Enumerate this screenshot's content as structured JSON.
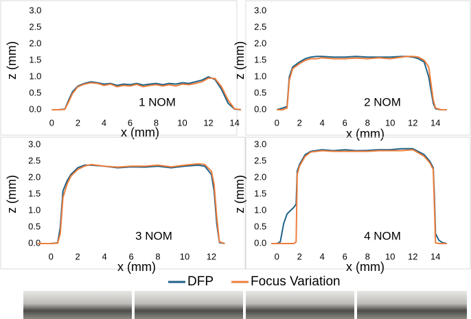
{
  "chart_data": [
    {
      "type": "line",
      "annotation": "1 NOM",
      "xlabel": "x (mm)",
      "ylabel": "z (mm)",
      "xlim": [
        -1.6,
        14.6
      ],
      "ylim": [
        0,
        3.0
      ],
      "xticks": [
        0,
        2,
        4,
        6,
        8,
        10,
        12,
        14
      ],
      "yticks": [
        {
          "value": 0,
          "label": "0.0"
        },
        {
          "value": 0.5,
          "label": "0.5"
        },
        {
          "value": 1,
          "label": "1.0"
        },
        {
          "value": 1.5,
          "label": "1.5"
        },
        {
          "value": 2,
          "label": "2.0"
        },
        {
          "value": 2.5,
          "label": "2.5"
        },
        {
          "value": 3,
          "label": "3.0"
        }
      ],
      "x": [
        0,
        0.5,
        1,
        1.3,
        1.6,
        2,
        2.5,
        3,
        3.5,
        4,
        4.5,
        5,
        5.5,
        6,
        6.5,
        7,
        7.5,
        8,
        8.5,
        9,
        9.5,
        10,
        10.5,
        11,
        11.5,
        12,
        12.5,
        13,
        13.5,
        14,
        14.5
      ],
      "series": [
        {
          "name": "DFP",
          "color": "#1d6286",
          "values": [
            0,
            0,
            0.02,
            0.3,
            0.55,
            0.72,
            0.8,
            0.85,
            0.82,
            0.78,
            0.8,
            0.74,
            0.78,
            0.76,
            0.8,
            0.75,
            0.78,
            0.8,
            0.76,
            0.8,
            0.78,
            0.82,
            0.8,
            0.85,
            0.9,
            1.0,
            0.92,
            0.62,
            0.2,
            0.02,
            0
          ]
        },
        {
          "name": "Focus Variation",
          "color": "#ee7d3b",
          "values": [
            0,
            0,
            0.01,
            0.25,
            0.5,
            0.7,
            0.78,
            0.82,
            0.8,
            0.74,
            0.78,
            0.7,
            0.74,
            0.72,
            0.77,
            0.7,
            0.74,
            0.76,
            0.72,
            0.76,
            0.72,
            0.78,
            0.76,
            0.8,
            0.85,
            0.96,
            0.95,
            0.7,
            0.3,
            0.03,
            0
          ]
        }
      ]
    },
    {
      "type": "line",
      "annotation": "2 NOM",
      "xlabel": "x (mm)",
      "ylabel": "z (mm)",
      "xlim": [
        -0.8,
        15.8
      ],
      "ylim": [
        0,
        3.0
      ],
      "xticks": [
        0,
        2,
        4,
        6,
        8,
        10,
        12,
        14
      ],
      "yticks": [
        {
          "value": 0,
          "label": "0.0"
        },
        {
          "value": 0.5,
          "label": "0.5"
        },
        {
          "value": 1,
          "label": "1.0"
        },
        {
          "value": 1.5,
          "label": "1.5"
        },
        {
          "value": 2,
          "label": "2.0"
        },
        {
          "value": 2.5,
          "label": "2.5"
        },
        {
          "value": 3,
          "label": "3.0"
        }
      ],
      "x": [
        0,
        0.5,
        0.9,
        1.1,
        1.4,
        2,
        2.5,
        3,
        3.5,
        4,
        5,
        6,
        7,
        8,
        9,
        10,
        11,
        11.5,
        12,
        12.5,
        13,
        13.4,
        13.6,
        13.8,
        14,
        14.5,
        15
      ],
      "series": [
        {
          "name": "DFP",
          "color": "#1d6286",
          "values": [
            0,
            0.05,
            0.1,
            1.0,
            1.3,
            1.45,
            1.55,
            1.6,
            1.62,
            1.62,
            1.6,
            1.6,
            1.62,
            1.6,
            1.6,
            1.6,
            1.62,
            1.62,
            1.6,
            1.55,
            1.45,
            1.0,
            0.6,
            0.2,
            0.03,
            0,
            0
          ]
        },
        {
          "name": "Focus Variation",
          "color": "#ee7d3b",
          "values": [
            0,
            0,
            0.05,
            0.9,
            1.25,
            1.4,
            1.5,
            1.55,
            1.55,
            1.58,
            1.55,
            1.55,
            1.57,
            1.55,
            1.58,
            1.55,
            1.6,
            1.62,
            1.62,
            1.6,
            1.5,
            1.3,
            0.8,
            0.3,
            0.05,
            0,
            0
          ]
        }
      ]
    },
    {
      "type": "line",
      "annotation": "3 NOM",
      "xlabel": "x (mm)",
      "ylabel": "z (mm)",
      "xlim": [
        -1.5,
        13.8
      ],
      "ylim": [
        0,
        3.0
      ],
      "xticks": [
        0,
        2,
        4,
        6,
        8,
        10,
        12
      ],
      "yticks": [
        {
          "value": 0,
          "label": "0.0"
        },
        {
          "value": 0.5,
          "label": "0.5"
        },
        {
          "value": 1,
          "label": "1.0"
        },
        {
          "value": 1.5,
          "label": "1.5"
        },
        {
          "value": 2,
          "label": "2.0"
        },
        {
          "value": 2.5,
          "label": "2.5"
        },
        {
          "value": 3,
          "label": "3.0"
        }
      ],
      "x": [
        -1,
        0,
        0.5,
        0.7,
        0.9,
        1.2,
        1.5,
        2,
        2.5,
        3,
        4,
        5,
        6,
        7,
        8,
        9,
        10,
        11,
        11.5,
        12,
        12.2,
        12.4,
        12.6,
        13
      ],
      "series": [
        {
          "name": "DFP",
          "color": "#1d6286",
          "values": [
            0,
            0,
            0.02,
            0.5,
            1.6,
            1.9,
            2.1,
            2.3,
            2.38,
            2.38,
            2.35,
            2.3,
            2.33,
            2.32,
            2.35,
            2.3,
            2.35,
            2.38,
            2.35,
            2.1,
            1.6,
            0.6,
            0.03,
            0
          ]
        },
        {
          "name": "Focus Variation",
          "color": "#ee7d3b",
          "values": [
            0,
            0,
            0.01,
            0.3,
            1.4,
            1.8,
            2.05,
            2.25,
            2.35,
            2.4,
            2.35,
            2.32,
            2.35,
            2.35,
            2.38,
            2.33,
            2.38,
            2.42,
            2.4,
            2.2,
            1.8,
            0.8,
            0.05,
            0
          ]
        }
      ]
    },
    {
      "type": "line",
      "annotation": "4 NOM",
      "xlabel": "x (mm)",
      "ylabel": "z (mm)",
      "xlim": [
        -0.8,
        15.8
      ],
      "ylim": [
        0,
        3.0
      ],
      "xticks": [
        0,
        2,
        4,
        6,
        8,
        10,
        12,
        14
      ],
      "yticks": [
        {
          "value": 0,
          "label": "0.0"
        },
        {
          "value": 0.5,
          "label": "0.5"
        },
        {
          "value": 1,
          "label": "1.0"
        },
        {
          "value": 1.5,
          "label": "1.5"
        },
        {
          "value": 2,
          "label": "2.0"
        },
        {
          "value": 2.5,
          "label": "2.5"
        },
        {
          "value": 3,
          "label": "3.0"
        }
      ],
      "x": [
        -0.5,
        0,
        0.3,
        0.6,
        0.9,
        1.2,
        1.5,
        1.7,
        1.8,
        2,
        2.5,
        3,
        4,
        5,
        6,
        7,
        8,
        9,
        10,
        11,
        12,
        13,
        13.5,
        13.8,
        13.9,
        14,
        14.3,
        14.6,
        15
      ],
      "series": [
        {
          "name": "DFP",
          "color": "#1d6286",
          "values": [
            0,
            0,
            0.05,
            0.6,
            0.9,
            1.0,
            1.1,
            1.2,
            2.2,
            2.4,
            2.7,
            2.8,
            2.85,
            2.82,
            2.85,
            2.82,
            2.83,
            2.85,
            2.85,
            2.88,
            2.88,
            2.7,
            2.5,
            2.3,
            1.5,
            0.3,
            0.1,
            0.03,
            0
          ]
        },
        {
          "name": "Focus Variation",
          "color": "#ee7d3b",
          "values": [
            0,
            0,
            0,
            0,
            0,
            0,
            0,
            0.05,
            2.1,
            2.35,
            2.65,
            2.78,
            2.82,
            2.8,
            2.8,
            2.8,
            2.8,
            2.82,
            2.82,
            2.82,
            2.85,
            2.65,
            2.45,
            2.25,
            1.2,
            0.02,
            0,
            0,
            0
          ]
        }
      ]
    }
  ]
}
